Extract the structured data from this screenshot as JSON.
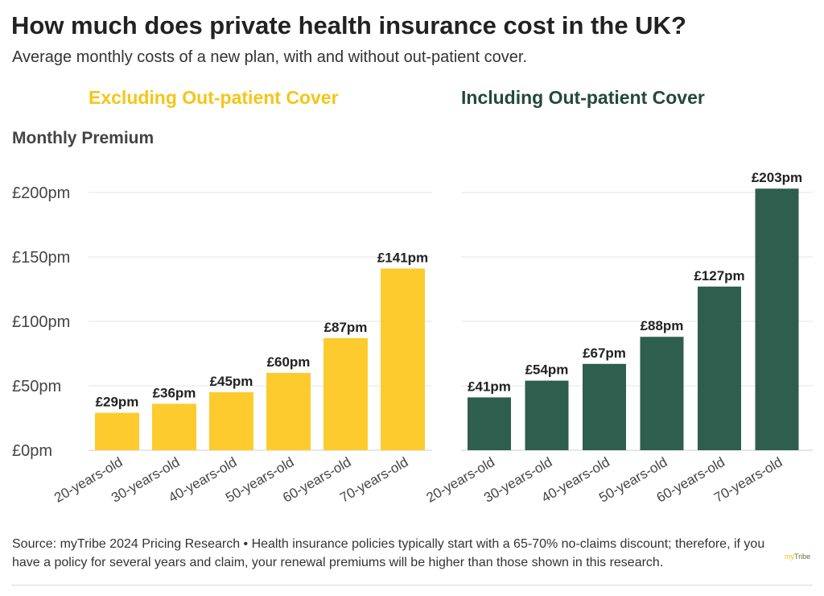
{
  "title": "How much does private health insurance cost in the UK?",
  "subtitle": "Average monthly costs of a new plan, with and without out-patient cover.",
  "y_axis_title": "Monthly Premium",
  "footer": "Source: myTribe 2024 Pricing Research • Health insurance policies typically start with a 65-70% no-claims discount; therefore, if you have a policy for several years and claim, your renewal premiums will be higher than those shown in this research.",
  "logo": {
    "mark": "my",
    "text": "Tribe"
  },
  "chart_data": [
    {
      "type": "bar",
      "title": "Excluding Out-patient Cover",
      "color": "#fdcb2e",
      "categories": [
        "20-years-old",
        "30-years-old",
        "40-years-old",
        "50-years-old",
        "60-years-old",
        "70-years-old"
      ],
      "values": [
        29,
        36,
        45,
        60,
        87,
        141
      ],
      "data_labels": [
        "£29pm",
        "£36pm",
        "£45pm",
        "£60pm",
        "£87pm",
        "£141pm"
      ],
      "ylabel": "Monthly Premium",
      "ylim": [
        0,
        210
      ],
      "yticks": [
        0,
        50,
        100,
        150,
        200
      ],
      "ytick_labels": [
        "£0pm",
        "£50pm",
        "£100pm",
        "£150pm",
        "£200pm"
      ],
      "grid": true
    },
    {
      "type": "bar",
      "title": "Including Out-patient Cover",
      "color": "#2e5e4e",
      "categories": [
        "20-years-old",
        "30-years-old",
        "40-years-old",
        "50-years-old",
        "60-years-old",
        "70-years-old"
      ],
      "values": [
        41,
        54,
        67,
        88,
        127,
        203
      ],
      "data_labels": [
        "£41pm",
        "£54pm",
        "£67pm",
        "£88pm",
        "£127pm",
        "£203pm"
      ],
      "ylim": [
        0,
        210
      ],
      "yticks": [
        0,
        50,
        100,
        150,
        200
      ],
      "grid": true
    }
  ]
}
